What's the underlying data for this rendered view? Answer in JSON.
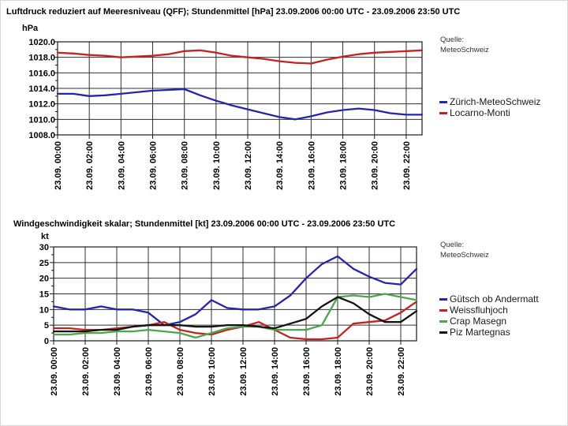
{
  "chart_data": [
    {
      "type": "line",
      "title": "Luftdruck reduziert auf Meeresniveau (QFF); Stundenmittel [hPa] 23.09.2006 00:00 UTC - 23.09.2006 23:50 UTC",
      "ylabel": "hPa",
      "source_label": "Quelle:",
      "source_name": "MeteoSchweiz",
      "ylim": [
        1008,
        1020
      ],
      "ytick_step": 2,
      "ytick_decimals": 1,
      "y_tick_labels": [
        "1020.0",
        "1018.0",
        "1016.0",
        "1014.0",
        "1012.0",
        "1010.0",
        "1008.0"
      ],
      "x_range_hours": [
        0,
        23
      ],
      "x_tick_hours": [
        0,
        2,
        4,
        6,
        8,
        10,
        12,
        14,
        16,
        18,
        20,
        22
      ],
      "x_tick_labels": [
        "23.09. 00:00",
        "23.09. 02:00",
        "23.09. 04:00",
        "23.09. 06:00",
        "23.09. 08:00",
        "23.09. 10:00",
        "23.09. 12:00",
        "23.09. 14:00",
        "23.09. 16:00",
        "23.09. 18:00",
        "23.09. 20:00",
        "23.09. 22:00"
      ],
      "x_label_rotation": -90,
      "grid": true,
      "legend_position": "right",
      "series": [
        {
          "name": "Zürich-MeteoSchweiz",
          "color": "#2525ad",
          "values": [
            1013.3,
            1013.3,
            1013.0,
            1013.1,
            1013.3,
            1013.5,
            1013.7,
            1013.8,
            1013.9,
            1013.1,
            1012.4,
            1011.8,
            1011.3,
            1010.8,
            1010.3,
            1010.0,
            1010.4,
            1010.9,
            1011.2,
            1011.4,
            1011.2,
            1010.8,
            1010.6,
            1010.6
          ]
        },
        {
          "name": "Locarno-Monti",
          "color": "#c62222",
          "values": [
            1018.6,
            1018.5,
            1018.3,
            1018.2,
            1018.0,
            1018.1,
            1018.2,
            1018.4,
            1018.8,
            1018.9,
            1018.6,
            1018.2,
            1018.0,
            1017.8,
            1017.5,
            1017.3,
            1017.2,
            1017.7,
            1018.1,
            1018.4,
            1018.6,
            1018.7,
            1018.8,
            1018.9
          ]
        }
      ]
    },
    {
      "type": "line",
      "title": "Windgeschwindigkeit skalar; Stundenmittel [kt] 23.09.2006 00:00 UTC - 23.09.2006 23:50 UTC",
      "ylabel": "kt",
      "source_label": "Quelle:",
      "source_name": "MeteoSchweiz",
      "ylim": [
        0,
        30
      ],
      "ytick_step": 5,
      "ytick_decimals": 0,
      "y_tick_labels": [
        "30",
        "25",
        "20",
        "15",
        "10",
        "5",
        "0"
      ],
      "x_range_hours": [
        0,
        23
      ],
      "x_tick_hours": [
        0,
        2,
        4,
        6,
        8,
        10,
        12,
        14,
        16,
        18,
        20,
        22
      ],
      "x_tick_labels": [
        "23.09. 00:00",
        "23.09. 02:00",
        "23.09. 04:00",
        "23.09. 06:00",
        "23.09. 08:00",
        "23.09. 10:00",
        "23.09. 12:00",
        "23.09. 14:00",
        "23.09. 16:00",
        "23.09. 18:00",
        "23.09. 20:00",
        "23.09. 22:00"
      ],
      "x_label_rotation": -90,
      "grid": true,
      "legend_position": "right",
      "series": [
        {
          "name": "Gütsch ob Andermatt",
          "color": "#2525ad",
          "values": [
            11,
            10,
            10,
            11,
            10,
            10,
            9,
            5,
            6,
            8.5,
            13,
            10.5,
            10,
            10,
            11,
            14.5,
            20,
            24.5,
            27,
            23,
            20.5,
            18.5,
            18,
            23
          ]
        },
        {
          "name": "Weissfluhjoch",
          "color": "#c62222",
          "values": [
            4,
            4,
            3.5,
            3.5,
            4,
            4.5,
            5,
            6,
            3.5,
            2.5,
            2,
            3.5,
            4.5,
            6,
            3.5,
            1,
            0.5,
            0.5,
            1,
            5.5,
            6,
            6.5,
            9,
            12.5
          ]
        },
        {
          "name": "Crap Masegn",
          "color": "#49a849",
          "values": [
            2,
            2,
            2.5,
            2.5,
            3,
            3,
            3.5,
            3,
            2.5,
            1,
            2.5,
            4,
            4.5,
            4.5,
            3.5,
            3.5,
            3.5,
            5,
            14,
            14.5,
            14,
            15,
            14,
            13
          ]
        },
        {
          "name": "Piz Martegnas",
          "color": "#141414",
          "values": [
            3,
            3,
            3,
            3.5,
            3.5,
            4.5,
            5,
            5,
            5,
            4.5,
            4.5,
            5,
            5,
            4.5,
            4,
            5.5,
            7,
            11,
            14,
            12,
            8.5,
            6,
            6,
            9.5
          ]
        }
      ]
    }
  ]
}
